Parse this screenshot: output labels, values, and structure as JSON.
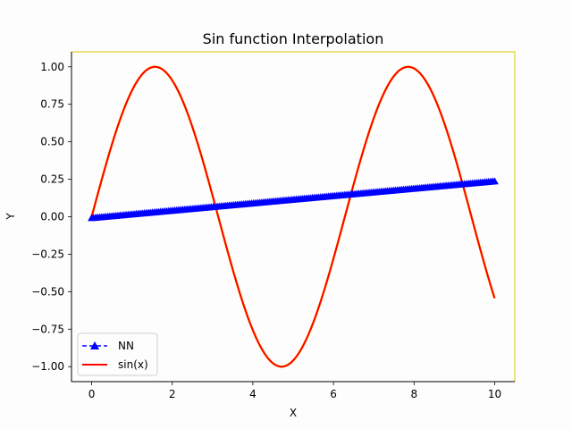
{
  "chart_data": {
    "type": "line",
    "title": "Sin function Interpolation",
    "xlabel": "X",
    "ylabel": "Y",
    "xlim": [
      -0.5,
      10.5
    ],
    "ylim": [
      -1.1,
      1.1
    ],
    "xticks": [
      0,
      2,
      4,
      6,
      8,
      10
    ],
    "xtick_labels": [
      "0",
      "2",
      "4",
      "6",
      "8",
      "10"
    ],
    "yticks": [
      1.0,
      0.75,
      0.5,
      0.25,
      0.0,
      -0.25,
      -0.5,
      -0.75,
      -1.0
    ],
    "ytick_labels": [
      "1.00",
      "0.75",
      "0.50",
      "0.25",
      "0.00",
      "−0.25",
      "−0.50",
      "−0.75",
      "−1.00"
    ],
    "grid": false,
    "legend_position": "lower-left",
    "series": [
      {
        "name": "NN",
        "color": "#0000ff",
        "style": "dashed",
        "marker": "triangle-up",
        "x_range": [
          0,
          10
        ],
        "y_start": -0.01,
        "y_end": 0.235,
        "count": 200
      },
      {
        "name": "sin(x)",
        "color": "#ff0000",
        "style": "solid",
        "function": "sin",
        "x_range": [
          0,
          10
        ]
      }
    ]
  }
}
